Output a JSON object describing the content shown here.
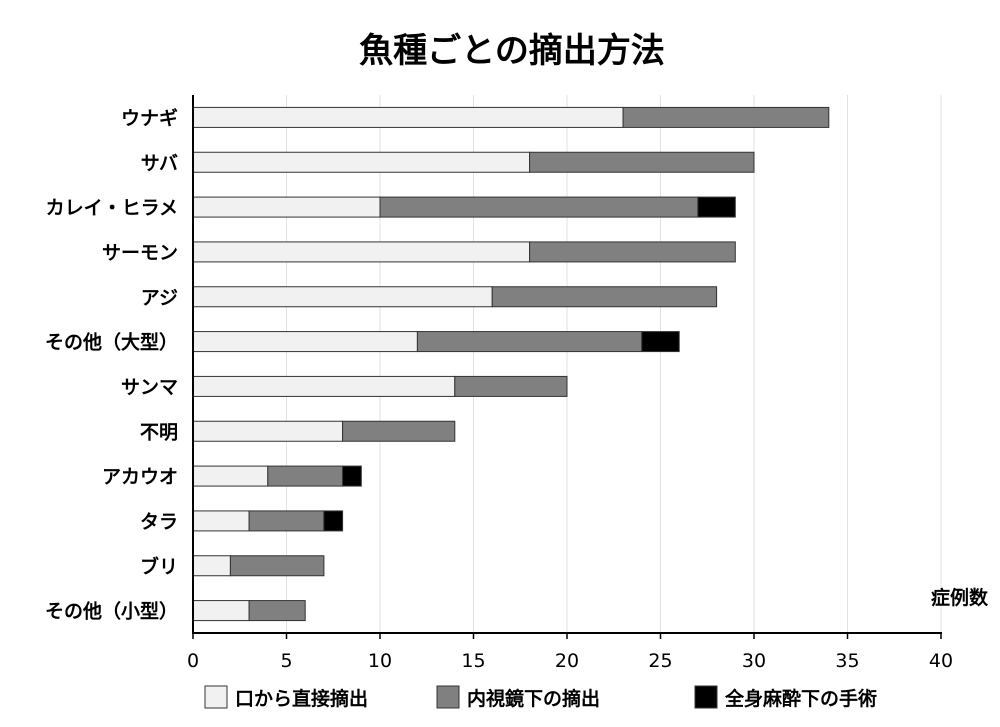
{
  "chart_data": {
    "type": "bar",
    "orientation": "horizontal",
    "stacked": true,
    "title": "魚種ごとの摘出方法",
    "xlabel": "症例数",
    "ylabel": "",
    "xlim": [
      0,
      40
    ],
    "xticks": [
      0,
      5,
      10,
      15,
      20,
      25,
      30,
      35,
      40
    ],
    "grid": true,
    "legend_position": "bottom",
    "categories": [
      "ウナギ",
      "サバ",
      "カレイ・ヒラメ",
      "サーモン",
      "アジ",
      "その他（大型）",
      "サンマ",
      "不明",
      "アカウオ",
      "タラ",
      "ブリ",
      "その他（小型）"
    ],
    "series": [
      {
        "name": "口から直接摘出",
        "color": "#f1f1f1",
        "values": [
          23,
          18,
          10,
          18,
          16,
          12,
          14,
          8,
          4,
          3,
          2,
          3
        ]
      },
      {
        "name": "内視鏡下の摘出",
        "color": "#808080",
        "values": [
          11,
          12,
          17,
          11,
          12,
          12,
          6,
          6,
          4,
          4,
          5,
          3
        ]
      },
      {
        "name": "全身麻酔下の手術",
        "color": "#000000",
        "values": [
          0,
          0,
          2,
          0,
          0,
          2,
          0,
          0,
          1,
          1,
          0,
          0
        ]
      }
    ]
  }
}
